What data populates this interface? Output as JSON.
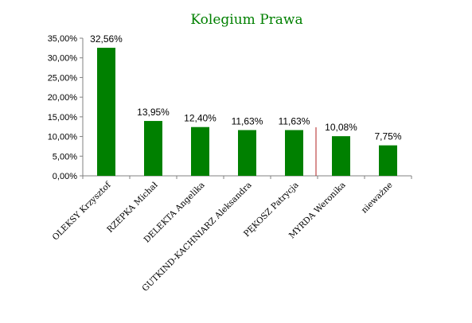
{
  "chart_data": {
    "type": "bar",
    "title": "Kolegium Prawa",
    "xlabel": "",
    "ylabel": "",
    "categories": [
      "OLEKSY Krzysztof",
      "RZEPKA Michał",
      "DELEKTA Angelika",
      "GUTKIND-KACHNIARZ Aleksandra",
      "PĘKOSZ Patrycja",
      "MYRDA Weronika",
      "nieważne"
    ],
    "values": [
      32.56,
      13.95,
      12.4,
      11.63,
      11.63,
      10.08,
      7.75
    ],
    "data_labels": [
      "32,56%",
      "13,95%",
      "12,40%",
      "11,63%",
      "11,63%",
      "10,08%",
      "7,75%"
    ],
    "ylim": [
      0,
      35
    ],
    "yticks": [
      0,
      5,
      10,
      15,
      20,
      25,
      30,
      35
    ],
    "ytick_labels": [
      "0,00%",
      "5,00%",
      "10,00%",
      "15,00%",
      "20,00%",
      "25,00%",
      "30,00%",
      "35,00%"
    ],
    "grid": false,
    "legend": false,
    "separator_after_index": 4
  },
  "colors": {
    "bar": "#008000",
    "title": "#008000",
    "axis": "#808080",
    "separator": "#b22222"
  }
}
